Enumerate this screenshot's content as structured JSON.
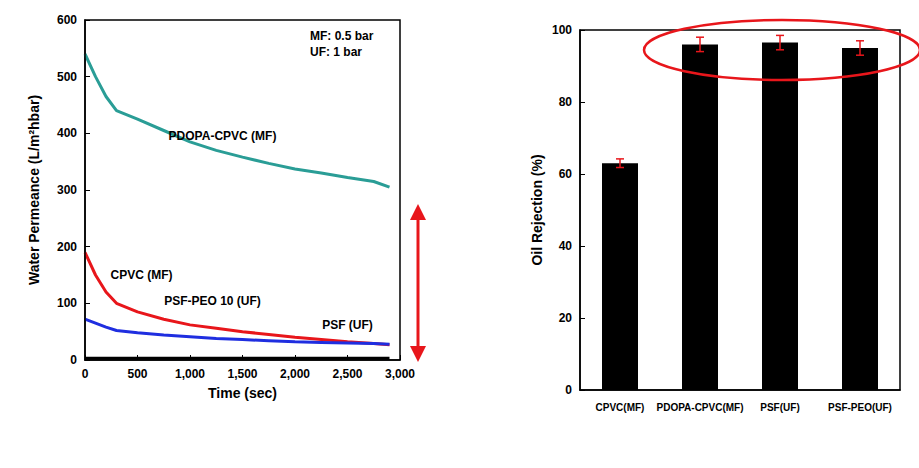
{
  "chart_data": [
    {
      "type": "line",
      "xlabel": "Time (sec)",
      "ylabel": "Water Permeance (L/m²hbar)",
      "annotations": [
        "MF: 0.5 bar",
        "UF: 1 bar"
      ],
      "x": [
        0,
        100,
        200,
        300,
        500,
        750,
        1000,
        1250,
        1500,
        1750,
        2000,
        2250,
        2500,
        2750,
        2900
      ],
      "series": [
        {
          "name": "PDOPA-CPVC (MF)",
          "color": "#2a9d96",
          "values": [
            540,
            500,
            465,
            440,
            425,
            405,
            385,
            370,
            358,
            347,
            337,
            330,
            322,
            315,
            305
          ]
        },
        {
          "name": "CPVC (MF)",
          "color": "#e8161b",
          "values": [
            190,
            150,
            120,
            100,
            85,
            72,
            62,
            56,
            50,
            45,
            40,
            36,
            32,
            29,
            27
          ]
        },
        {
          "name": "PSF-PEO 10 (UF)",
          "color": "#1f2ee0",
          "values": [
            72,
            65,
            58,
            52,
            48,
            44,
            41,
            38,
            36,
            34,
            32,
            31,
            30,
            29,
            28
          ]
        },
        {
          "name": "PSF (UF)",
          "color": "#000000",
          "values": [
            3,
            3,
            3,
            3,
            3,
            3,
            3,
            3,
            3,
            3,
            3,
            3,
            3,
            3,
            3
          ]
        }
      ],
      "xlim": [
        0,
        3000
      ],
      "xticks": [
        0,
        500,
        1000,
        1500,
        2000,
        2500,
        3000
      ],
      "ylim": [
        0,
        600
      ],
      "yticks": [
        0,
        100,
        200,
        300,
        400,
        500,
        600
      ],
      "grid": false
    },
    {
      "type": "bar",
      "ylabel": "Oil Rejection (%)",
      "categories": [
        "CPVC(MF)",
        "PDOPA-CPVC(MF)",
        "PSF(UF)",
        "PSF-PEO(UF)"
      ],
      "values": [
        63,
        96,
        96.5,
        95
      ],
      "errors": [
        1.2,
        2,
        2,
        2
      ],
      "color": "#000000",
      "ylim": [
        0,
        100
      ],
      "yticks": [
        0,
        20,
        40,
        60,
        80,
        100
      ],
      "grid": false
    }
  ]
}
